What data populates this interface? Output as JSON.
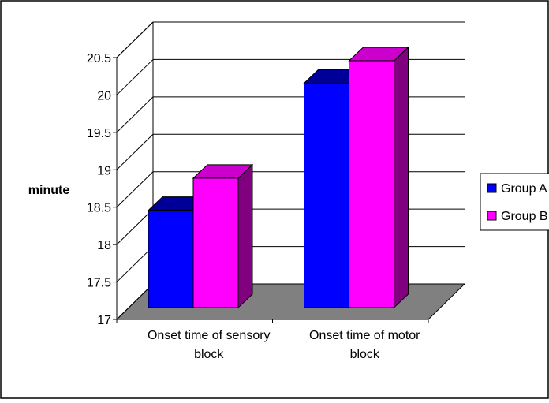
{
  "chart_data": {
    "type": "bar",
    "title": "",
    "xlabel": "",
    "ylabel": "minute",
    "categories": [
      "Onset time of sensory block",
      "Onset time of motor block"
    ],
    "category_lines": [
      [
        "Onset time of sensory",
        "block"
      ],
      [
        "Onset time of motor",
        "block"
      ]
    ],
    "series": [
      {
        "name": "Group A",
        "values": [
          18.3,
          20.0
        ]
      },
      {
        "name": "Group B",
        "values": [
          18.73,
          20.3
        ]
      }
    ],
    "ylim": [
      17,
      20.5
    ],
    "yticks": [
      "17",
      "17.5",
      "18",
      "18.5",
      "19",
      "19.5",
      "20",
      "20.5"
    ],
    "grid": true,
    "three_d": true,
    "legend_position": "right",
    "colors": {
      "group_a": "#0000FF",
      "group_a_top": "#000099",
      "group_a_side": "#00007F",
      "group_b": "#FF00FF",
      "group_b_top": "#CC00CC",
      "group_b_side": "#800080",
      "floor": "#808080",
      "frame": "#000000"
    }
  }
}
